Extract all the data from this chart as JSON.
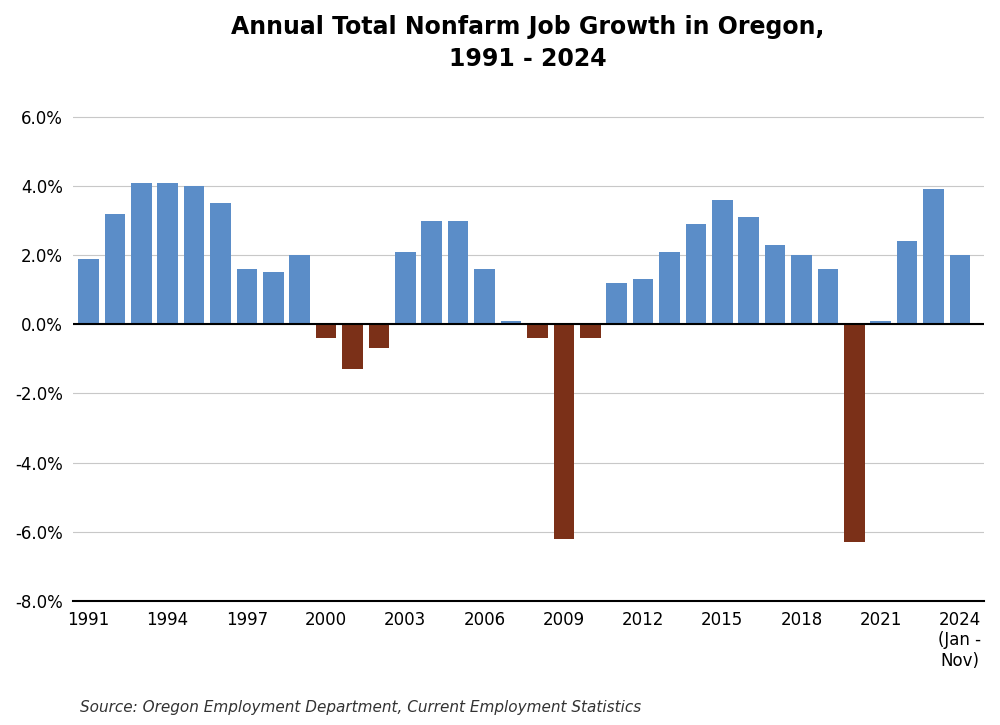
{
  "title": "Annual Total Nonfarm Job Growth in Oregon,\n1991 - 2024",
  "source": "Source: Oregon Employment Department, Current Employment Statistics",
  "years": [
    1991,
    1992,
    1993,
    1994,
    1995,
    1996,
    1997,
    1998,
    1999,
    2000,
    2001,
    2002,
    2003,
    2004,
    2005,
    2006,
    2007,
    2008,
    2009,
    2010,
    2011,
    2012,
    2013,
    2014,
    2015,
    2016,
    2017,
    2018,
    2019,
    2020,
    2021,
    2022,
    2023,
    2024
  ],
  "values": [
    0.019,
    0.032,
    0.041,
    0.041,
    0.04,
    0.035,
    0.016,
    0.015,
    0.02,
    -0.004,
    -0.013,
    -0.007,
    0.021,
    0.03,
    0.03,
    0.016,
    0.001,
    -0.004,
    -0.062,
    -0.004,
    0.012,
    0.013,
    0.021,
    0.029,
    0.036,
    0.031,
    0.023,
    0.02,
    0.016,
    -0.063,
    0.001,
    0.024,
    0.039,
    0.02
  ],
  "blue_color": "#5b8dc8",
  "brown_color": "#7b3018",
  "ylim": [
    -0.08,
    0.07
  ],
  "yticks": [
    -0.08,
    -0.06,
    -0.04,
    -0.02,
    0.0,
    0.02,
    0.04,
    0.06
  ],
  "xticks": [
    1991,
    1994,
    1997,
    2000,
    2003,
    2006,
    2009,
    2012,
    2015,
    2018,
    2021,
    2024
  ],
  "xlim": [
    1990.4,
    2024.9
  ],
  "background_color": "#ffffff",
  "title_fontsize": 17,
  "axis_fontsize": 12,
  "source_fontsize": 11,
  "bar_width": 0.78,
  "last_label": "2024\n(Jan -\nNov)"
}
